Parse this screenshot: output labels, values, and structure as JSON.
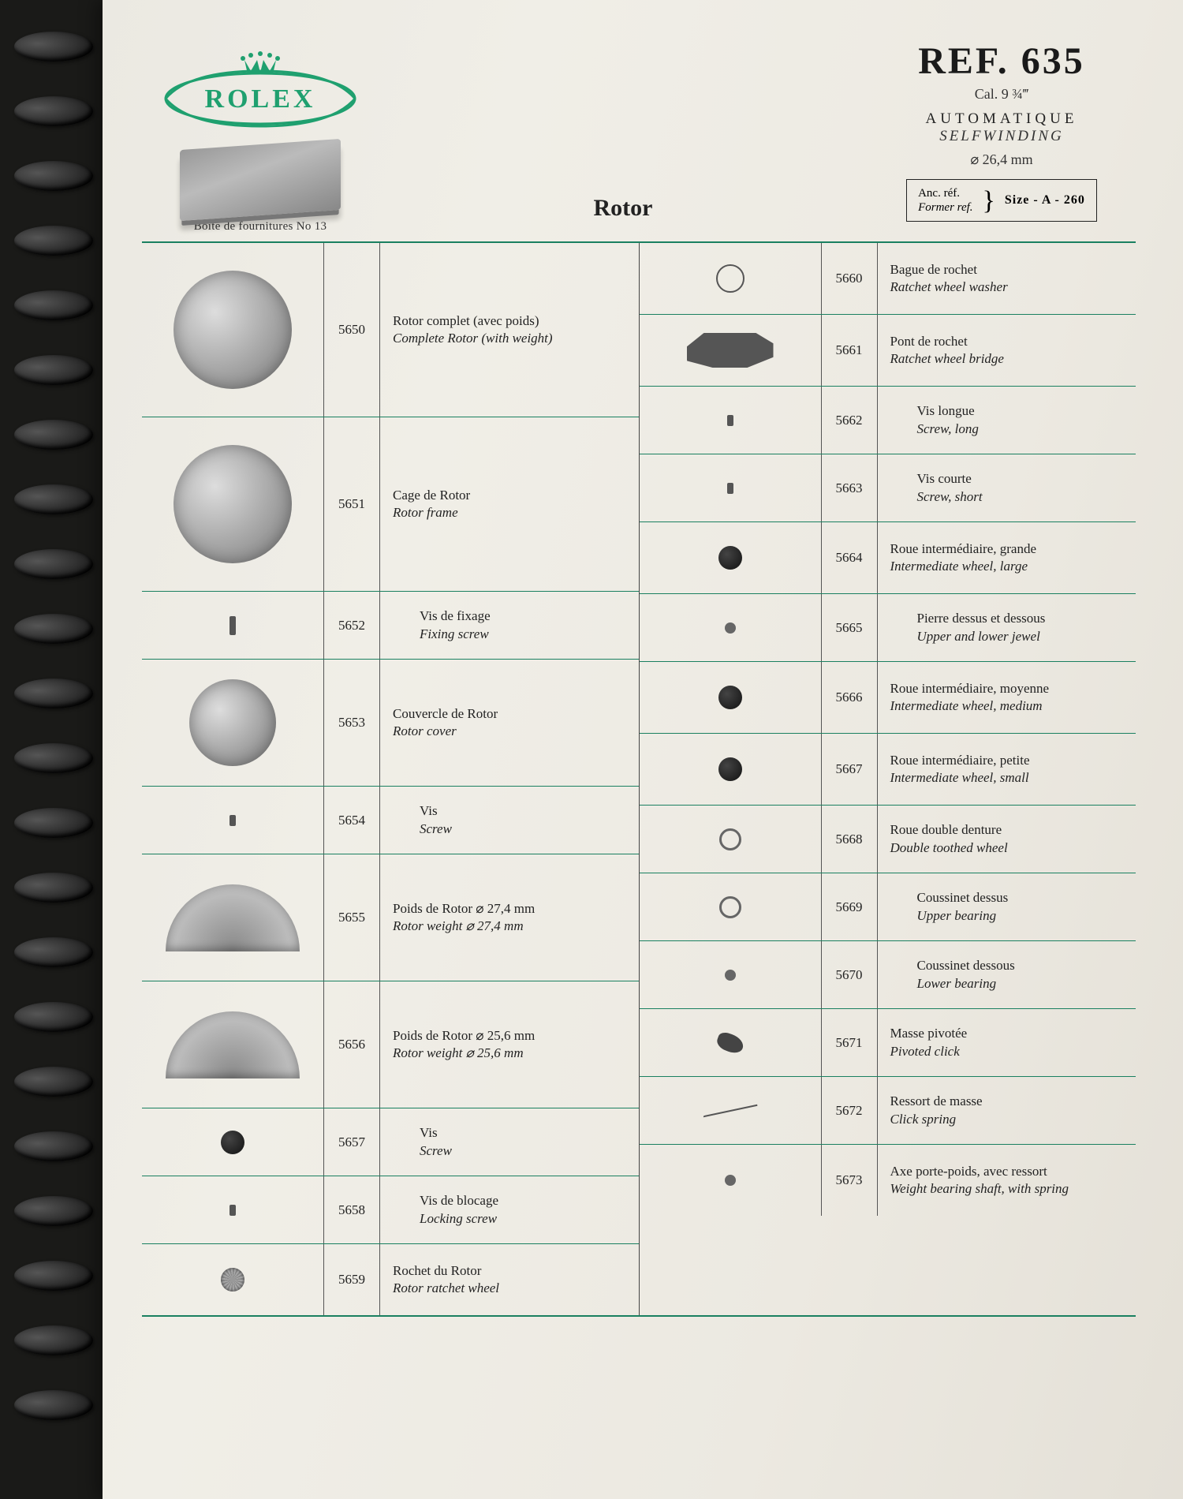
{
  "colors": {
    "rule_green": "#1a8060",
    "logo_green": "#1fa06f",
    "text": "#222222",
    "paper": "#ece9e1",
    "background": "#2a3530"
  },
  "typography": {
    "body_family": "Georgia, 'Times New Roman', serif",
    "ref_title_size_pt": 36,
    "section_title_size_pt": 22,
    "body_size_pt": 13
  },
  "header": {
    "brand": "ROLEX",
    "box_caption": "Boite de fournitures No 13",
    "section_title": "Rotor",
    "ref_title": "REF. 635",
    "cal": "Cal. 9 ¾‴",
    "auto_fr": "AUTOMATIQUE",
    "auto_en": "SELFWINDING",
    "diameter": "⌀ 26,4 mm",
    "refbox_fr": "Anc. réf.",
    "refbox_en": "Former ref.",
    "refbox_val": "Size - A - 260"
  },
  "left_groups": [
    {
      "rows": [
        {
          "num": "5650",
          "fr": "Rotor complet (avec poids)",
          "en": "Complete Rotor (with weight)",
          "h": "tall",
          "img": "disc"
        }
      ]
    },
    {
      "rows": [
        {
          "num": "5651",
          "fr": "Cage de Rotor",
          "en": "Rotor frame",
          "h": "tall",
          "img": "disc"
        },
        {
          "num": "5652",
          "fr": "Vis de fixage",
          "en": "Fixing screw",
          "h": "short",
          "img": "screw",
          "indent": true
        }
      ]
    },
    {
      "rows": [
        {
          "num": "5653",
          "fr": "Couvercle de Rotor",
          "en": "Rotor cover",
          "h": "med",
          "img": "disc-sm"
        },
        {
          "num": "5654",
          "fr": "Vis",
          "en": "Screw",
          "h": "short",
          "img": "screw-tiny",
          "indent": true
        }
      ]
    },
    {
      "rows": [
        {
          "num": "5655",
          "fr": "Poids de Rotor   ⌀ 27,4 mm",
          "en": "Rotor weight   ⌀ 27,4 mm",
          "h": "med",
          "img": "half"
        },
        {
          "num": "5656",
          "fr": "Poids de Rotor   ⌀ 25,6 mm",
          "en": "Rotor weight   ⌀ 25,6 mm",
          "h": "med",
          "img": "half"
        },
        {
          "num": "5657",
          "fr": "Vis",
          "en": "Screw",
          "h": "short",
          "img": "dot",
          "indent": true
        },
        {
          "num": "5658",
          "fr": "Vis de blocage",
          "en": "Locking screw",
          "h": "short",
          "img": "screw-tiny",
          "indent": true
        }
      ]
    },
    {
      "rows": [
        {
          "num": "5659",
          "fr": "Rochet du Rotor",
          "en": "Rotor ratchet wheel",
          "h": "",
          "img": "gear"
        }
      ]
    }
  ],
  "right_groups": [
    {
      "rows": [
        {
          "num": "5660",
          "fr": "Bague de rochet",
          "en": "Ratchet wheel washer",
          "h": "",
          "img": "ring"
        }
      ]
    },
    {
      "rows": [
        {
          "num": "5661",
          "fr": "Pont de rochet",
          "en": "Ratchet wheel bridge",
          "h": "",
          "img": "bridge"
        },
        {
          "num": "5662",
          "fr": "Vis longue",
          "en": "Screw, long",
          "h": "short",
          "img": "screw-tiny",
          "indent": true
        },
        {
          "num": "5663",
          "fr": "Vis courte",
          "en": "Screw, short",
          "h": "short",
          "img": "screw-tiny",
          "indent": true
        }
      ]
    },
    {
      "rows": [
        {
          "num": "5664",
          "fr": "Roue intermédiaire, grande",
          "en": "Intermediate wheel, large",
          "h": "",
          "img": "dot"
        },
        {
          "num": "5665",
          "fr": "Pierre dessus et dessous",
          "en": "Upper and lower jewel",
          "h": "short",
          "img": "tiny",
          "indent": true
        }
      ]
    },
    {
      "rows": [
        {
          "num": "5666",
          "fr": "Roue intermédiaire, moyenne",
          "en": "Intermediate wheel, medium",
          "h": "",
          "img": "dot"
        }
      ]
    },
    {
      "rows": [
        {
          "num": "5667",
          "fr": "Roue intermédiaire, petite",
          "en": "Intermediate wheel, small",
          "h": "",
          "img": "dot"
        }
      ]
    },
    {
      "rows": [
        {
          "num": "5668",
          "fr": "Roue double denture",
          "en": "Double toothed wheel",
          "h": "short",
          "img": "small-ring"
        },
        {
          "num": "5669",
          "fr": "Coussinet dessus",
          "en": "Upper bearing",
          "h": "short",
          "img": "small-ring",
          "indent": true
        },
        {
          "num": "5670",
          "fr": "Coussinet dessous",
          "en": "Lower bearing",
          "h": "short",
          "img": "tiny",
          "indent": true
        }
      ]
    },
    {
      "rows": [
        {
          "num": "5671",
          "fr": "Masse pivotée",
          "en": "Pivoted click",
          "h": "short",
          "img": "click"
        },
        {
          "num": "5672",
          "fr": "Ressort de masse",
          "en": "Click spring",
          "h": "short",
          "img": "spring"
        }
      ]
    },
    {
      "rows": [
        {
          "num": "5673",
          "fr": "Axe porte-poids, avec ressort",
          "en": "Weight bearing shaft, with spring",
          "h": "",
          "img": "tiny"
        }
      ]
    }
  ]
}
